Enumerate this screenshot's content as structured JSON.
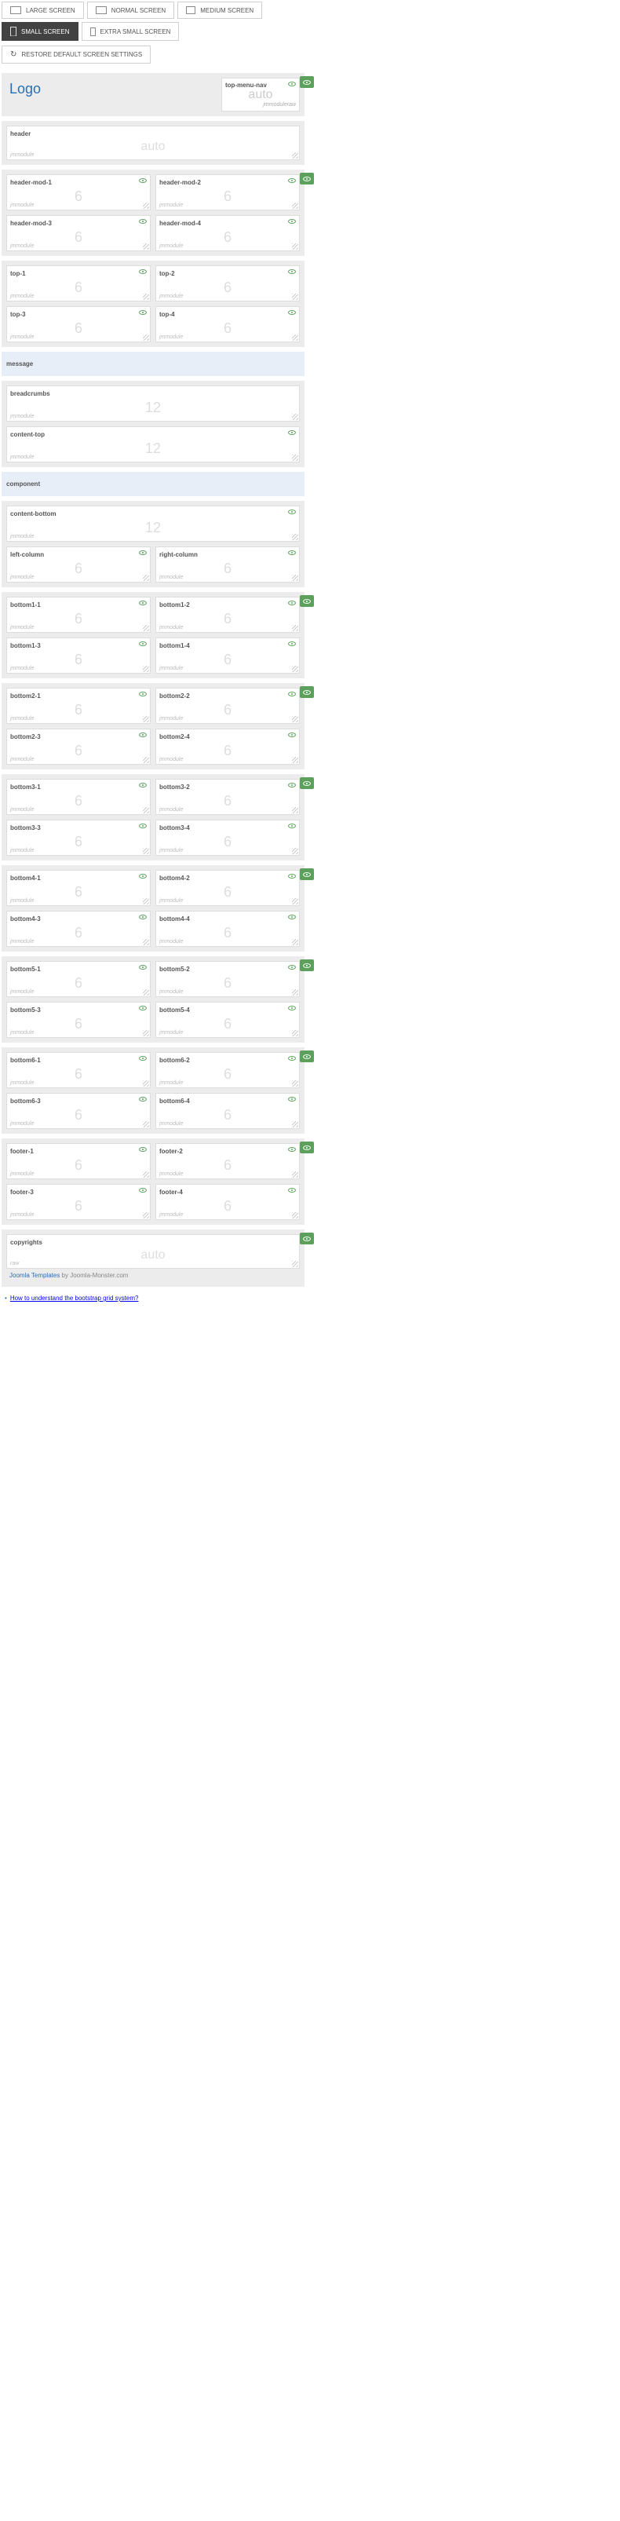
{
  "tabs": {
    "large": "LARGE SCREEN",
    "normal": "NORMAL SCREEN",
    "medium": "MEDIUM SCREEN",
    "small": "SMALL SCREEN",
    "xsmall": "EXTRA SMALL SCREEN",
    "restore": "RESTORE DEFAULT SCREEN SETTINGS"
  },
  "logo": {
    "text": "Logo"
  },
  "topMenu": {
    "label": "top-menu-nav",
    "placeholder": "auto",
    "type": "jmmoduleraw"
  },
  "header": {
    "label": "header",
    "placeholder": "auto",
    "type": "jmmodule"
  },
  "headerMod": {
    "r1c1": "header-mod-1",
    "r1c2": "header-mod-2",
    "r2c1": "header-mod-3",
    "r2c2": "header-mod-4"
  },
  "top": {
    "r1c1": "top-1",
    "r1c2": "top-2",
    "r2c1": "top-3",
    "r2c2": "top-4"
  },
  "message": {
    "label": "message"
  },
  "breadcrumbs": {
    "label": "breadcrumbs",
    "num": "12",
    "type": "jmmodule"
  },
  "contentTop": {
    "label": "content-top",
    "num": "12",
    "type": "jmmodule"
  },
  "component": {
    "label": "component"
  },
  "contentBottom": {
    "label": "content-bottom",
    "num": "12",
    "type": "jmmodule"
  },
  "columns": {
    "left": "left-column",
    "right": "right-column"
  },
  "bottom1": {
    "r1c1": "bottom1-1",
    "r1c2": "bottom1-2",
    "r2c1": "bottom1-3",
    "r2c2": "bottom1-4"
  },
  "bottom2": {
    "r1c1": "bottom2-1",
    "r1c2": "bottom2-2",
    "r2c1": "bottom2-3",
    "r2c2": "bottom2-4"
  },
  "bottom3": {
    "r1c1": "bottom3-1",
    "r1c2": "bottom3-2",
    "r2c1": "bottom3-3",
    "r2c2": "bottom3-4"
  },
  "bottom4": {
    "r1c1": "bottom4-1",
    "r1c2": "bottom4-2",
    "r2c1": "bottom4-3",
    "r2c2": "bottom4-4"
  },
  "bottom5": {
    "r1c1": "bottom5-1",
    "r1c2": "bottom5-2",
    "r2c1": "bottom5-3",
    "r2c2": "bottom5-4"
  },
  "bottom6": {
    "r1c1": "bottom6-1",
    "r1c2": "bottom6-2",
    "r2c1": "bottom6-3",
    "r2c2": "bottom6-4"
  },
  "footer": {
    "r1c1": "footer-1",
    "r1c2": "footer-2",
    "r2c1": "footer-3",
    "r2c2": "footer-4"
  },
  "copyrights": {
    "label": "copyrights",
    "placeholder": "auto",
    "type": "raw"
  },
  "footerLinks": {
    "joomla": "Joomla Templates",
    "by": " by Joomla-Monster.com"
  },
  "help": {
    "text": "How to understand the bootstrap grid system?"
  },
  "common": {
    "six": "6",
    "jmmodule": "jmmodule"
  },
  "colors": {
    "accent": "#2a6fb5",
    "badge": "#5ba05b",
    "sectionBg": "#ececec",
    "blueBg": "#e8eef8",
    "activeTab": "#424242",
    "placeholder": "#ddd"
  }
}
